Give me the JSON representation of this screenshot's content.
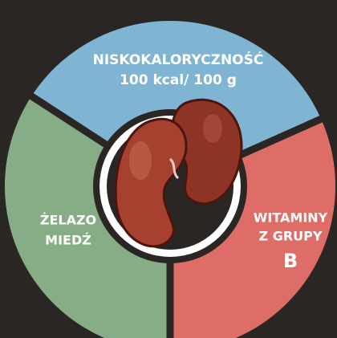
{
  "segments": [
    {
      "lines": [
        "NISKOKALORYCZNOŚĆ",
        "100 kcal/ 100 g"
      ]
    },
    {
      "lines": [
        "ŻELAZO",
        "MIEDŹ"
      ]
    },
    {
      "lines": [
        "WITAMINY",
        "Z GRUPY",
        "B"
      ]
    }
  ]
}
